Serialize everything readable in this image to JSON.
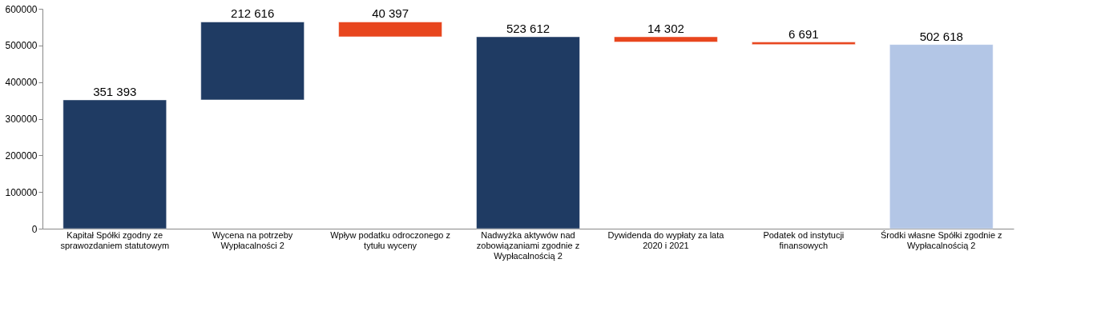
{
  "chart_data": {
    "type": "bar",
    "categories": [
      "Kapitał Spółki zgodny ze sprawozdaniem statutowym",
      "Wycena na potrzeby Wypłacalności 2",
      "Wpływ podatku odroczonego z tytułu wyceny",
      "Nadwyżka aktywów nad zobowiązaniami zgodnie z Wypłacalnością 2",
      "Dywidenda do wypłaty za lata 2020 i 2021",
      "Podatek od instytucji finansowych",
      "Środki własne Spółki zgodnie z Wypłacalnością 2"
    ],
    "values": [
      351393,
      212616,
      40397,
      523612,
      14302,
      6691,
      502618
    ],
    "base": [
      0,
      351393,
      523612,
      0,
      509310,
      502619,
      0
    ],
    "colors": [
      "#1f3b63",
      "#1f3b63",
      "#e8461e",
      "#1f3b63",
      "#e8461e",
      "#e8461e",
      "#b3c6e6"
    ],
    "value_labels": [
      "351 393",
      "212 616",
      "40 397",
      "523 612",
      "14 302",
      "6 691",
      "502 618"
    ],
    "ylim": [
      0,
      600000
    ],
    "yticks": [
      0,
      100000,
      200000,
      300000,
      400000,
      500000,
      600000
    ],
    "grid": false
  }
}
